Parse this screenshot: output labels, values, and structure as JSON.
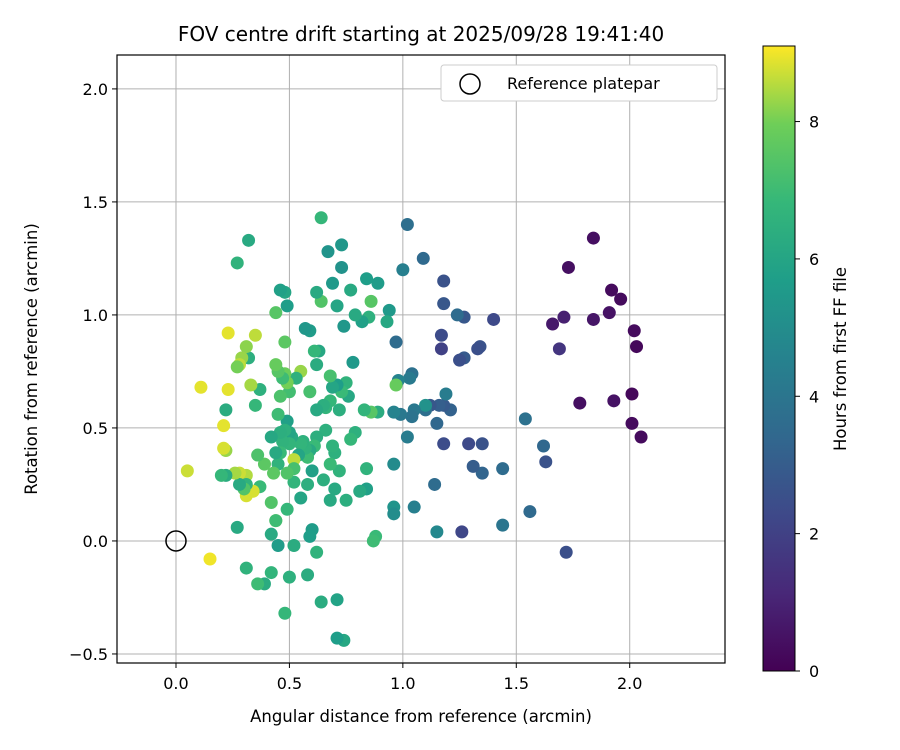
{
  "chart_data": {
    "type": "scatter",
    "title": "FOV centre drift starting at 2025/09/28 19:41:40",
    "xlabel": "Angular distance from reference (arcmin)",
    "ylabel": "Rotation from reference (arcmin)",
    "xlim": [
      -0.26,
      2.42
    ],
    "ylim": [
      -0.54,
      2.15
    ],
    "xticks": [
      0.0,
      0.5,
      1.0,
      1.5,
      2.0
    ],
    "xtick_labels": [
      "0.0",
      "0.5",
      "1.0",
      "1.5",
      "2.0"
    ],
    "yticks": [
      -0.5,
      0.0,
      0.5,
      1.0,
      1.5,
      2.0
    ],
    "ytick_labels": [
      "−0.5",
      "0.0",
      "0.5",
      "1.0",
      "1.5",
      "2.0"
    ],
    "grid": true,
    "legend": {
      "position": "top-right",
      "label": "Reference platepar"
    },
    "reference_point": {
      "x": 0.0,
      "y": 0.0
    },
    "colorbar": {
      "label": "Hours from first FF file",
      "min": 0,
      "max": 9.1,
      "ticks": [
        0,
        2,
        4,
        6,
        8
      ],
      "tick_labels": [
        "0",
        "2",
        "4",
        "6",
        "8"
      ],
      "colormap": "viridis"
    },
    "points": [
      {
        "x": 1.84,
        "y": 1.34,
        "h": 0.4
      },
      {
        "x": 1.73,
        "y": 1.21,
        "h": 0.4
      },
      {
        "x": 1.92,
        "y": 1.11,
        "h": 0.3
      },
      {
        "x": 1.96,
        "y": 1.07,
        "h": 0.3
      },
      {
        "x": 1.91,
        "y": 1.01,
        "h": 0.5
      },
      {
        "x": 1.84,
        "y": 0.98,
        "h": 0.6
      },
      {
        "x": 1.71,
        "y": 0.99,
        "h": 0.9
      },
      {
        "x": 1.66,
        "y": 0.96,
        "h": 0.7
      },
      {
        "x": 2.02,
        "y": 0.93,
        "h": 0.3
      },
      {
        "x": 2.03,
        "y": 0.86,
        "h": 0.2
      },
      {
        "x": 1.69,
        "y": 0.85,
        "h": 1.6
      },
      {
        "x": 2.01,
        "y": 0.65,
        "h": 0.2
      },
      {
        "x": 1.93,
        "y": 0.62,
        "h": 0.5
      },
      {
        "x": 1.78,
        "y": 0.61,
        "h": 0.4
      },
      {
        "x": 2.01,
        "y": 0.52,
        "h": 0.3
      },
      {
        "x": 2.05,
        "y": 0.46,
        "h": 0.3
      },
      {
        "x": 1.72,
        "y": -0.05,
        "h": 2.5
      },
      {
        "x": 1.63,
        "y": 0.35,
        "h": 2.6
      },
      {
        "x": 1.62,
        "y": 0.42,
        "h": 3.4
      },
      {
        "x": 1.54,
        "y": 0.54,
        "h": 3.8
      },
      {
        "x": 1.56,
        "y": 0.13,
        "h": 3.5
      },
      {
        "x": 1.44,
        "y": 0.07,
        "h": 4.0
      },
      {
        "x": 1.44,
        "y": 0.32,
        "h": 3.6
      },
      {
        "x": 1.4,
        "y": 0.98,
        "h": 2.3
      },
      {
        "x": 1.34,
        "y": 0.86,
        "h": 2.6
      },
      {
        "x": 1.33,
        "y": 0.85,
        "h": 2.5
      },
      {
        "x": 1.35,
        "y": 0.43,
        "h": 2.6
      },
      {
        "x": 1.35,
        "y": 0.3,
        "h": 3.3
      },
      {
        "x": 1.31,
        "y": 0.33,
        "h": 3.0
      },
      {
        "x": 1.29,
        "y": 0.43,
        "h": 2.3
      },
      {
        "x": 1.27,
        "y": 0.99,
        "h": 2.8
      },
      {
        "x": 1.27,
        "y": 0.81,
        "h": 2.9
      },
      {
        "x": 1.25,
        "y": 0.8,
        "h": 2.5
      },
      {
        "x": 1.24,
        "y": 1.0,
        "h": 3.6
      },
      {
        "x": 1.26,
        "y": 0.04,
        "h": 2.2
      },
      {
        "x": 1.21,
        "y": 0.58,
        "h": 3.2
      },
      {
        "x": 1.18,
        "y": 1.15,
        "h": 2.6
      },
      {
        "x": 1.18,
        "y": 1.05,
        "h": 2.8
      },
      {
        "x": 1.17,
        "y": 0.91,
        "h": 2.4
      },
      {
        "x": 1.17,
        "y": 0.85,
        "h": 2.0
      },
      {
        "x": 1.18,
        "y": 0.6,
        "h": 2.9
      },
      {
        "x": 1.18,
        "y": 0.43,
        "h": 2.4
      },
      {
        "x": 1.19,
        "y": 0.65,
        "h": 4.3
      },
      {
        "x": 1.16,
        "y": 0.6,
        "h": 3.1
      },
      {
        "x": 1.15,
        "y": 0.52,
        "h": 3.4
      },
      {
        "x": 1.14,
        "y": 0.25,
        "h": 3.6
      },
      {
        "x": 1.15,
        "y": 0.04,
        "h": 4.8
      },
      {
        "x": 1.12,
        "y": 0.6,
        "h": 2.8
      },
      {
        "x": 1.1,
        "y": 0.58,
        "h": 3.7
      },
      {
        "x": 1.1,
        "y": 0.6,
        "h": 5.2
      },
      {
        "x": 1.09,
        "y": 1.25,
        "h": 3.5
      },
      {
        "x": 1.05,
        "y": 0.58,
        "h": 4.1
      },
      {
        "x": 1.04,
        "y": 0.74,
        "h": 3.8
      },
      {
        "x": 1.03,
        "y": 0.72,
        "h": 4.2
      },
      {
        "x": 1.04,
        "y": 0.55,
        "h": 3.9
      },
      {
        "x": 1.05,
        "y": 0.15,
        "h": 4.4
      },
      {
        "x": 1.02,
        "y": 1.4,
        "h": 3.7
      },
      {
        "x": 1.02,
        "y": 0.46,
        "h": 4.3
      },
      {
        "x": 1.0,
        "y": 1.2,
        "h": 4.4
      },
      {
        "x": 0.99,
        "y": 0.56,
        "h": 4.1
      },
      {
        "x": 0.98,
        "y": 0.71,
        "h": 4.6
      },
      {
        "x": 0.97,
        "y": 0.88,
        "h": 3.6
      },
      {
        "x": 0.96,
        "y": 0.57,
        "h": 4.6
      },
      {
        "x": 0.96,
        "y": 0.34,
        "h": 4.9
      },
      {
        "x": 0.96,
        "y": 0.15,
        "h": 5.3
      },
      {
        "x": 0.96,
        "y": 0.12,
        "h": 5.0
      },
      {
        "x": 0.97,
        "y": 0.69,
        "h": 7.8
      },
      {
        "x": 0.94,
        "y": 1.02,
        "h": 5.5
      },
      {
        "x": 0.93,
        "y": 0.97,
        "h": 6.1
      },
      {
        "x": 0.89,
        "y": 1.14,
        "h": 5.6
      },
      {
        "x": 0.89,
        "y": 0.57,
        "h": 6.3
      },
      {
        "x": 0.88,
        "y": 0.02,
        "h": 6.9
      },
      {
        "x": 0.87,
        "y": 0.0,
        "h": 7.0
      },
      {
        "x": 0.86,
        "y": 1.06,
        "h": 7.5
      },
      {
        "x": 0.85,
        "y": 0.99,
        "h": 6.5
      },
      {
        "x": 0.86,
        "y": 0.57,
        "h": 7.5
      },
      {
        "x": 0.84,
        "y": 1.16,
        "h": 5.7
      },
      {
        "x": 0.84,
        "y": 0.23,
        "h": 5.8
      },
      {
        "x": 0.84,
        "y": 0.32,
        "h": 6.6
      },
      {
        "x": 0.83,
        "y": 0.58,
        "h": 6.7
      },
      {
        "x": 0.82,
        "y": 0.97,
        "h": 5.8
      },
      {
        "x": 0.81,
        "y": 0.22,
        "h": 6.2
      },
      {
        "x": 0.79,
        "y": 1.0,
        "h": 6.2
      },
      {
        "x": 0.79,
        "y": 0.48,
        "h": 6.5
      },
      {
        "x": 0.78,
        "y": 0.79,
        "h": 5.5
      },
      {
        "x": 0.77,
        "y": 1.11,
        "h": 6.2
      },
      {
        "x": 0.77,
        "y": 0.45,
        "h": 6.8
      },
      {
        "x": 0.75,
        "y": 0.18,
        "h": 6.4
      },
      {
        "x": 0.76,
        "y": 0.64,
        "h": 6.1
      },
      {
        "x": 0.75,
        "y": 0.7,
        "h": 6.6
      },
      {
        "x": 0.74,
        "y": 0.95,
        "h": 5.4
      },
      {
        "x": 0.74,
        "y": -0.44,
        "h": 6.1
      },
      {
        "x": 0.73,
        "y": 1.31,
        "h": 5.4
      },
      {
        "x": 0.73,
        "y": 1.21,
        "h": 5.2
      },
      {
        "x": 0.73,
        "y": 0.66,
        "h": 6.9
      },
      {
        "x": 0.72,
        "y": 0.58,
        "h": 6.4
      },
      {
        "x": 0.72,
        "y": 0.31,
        "h": 6.6
      },
      {
        "x": 0.71,
        "y": 1.04,
        "h": 6.0
      },
      {
        "x": 0.71,
        "y": 0.69,
        "h": 5.7
      },
      {
        "x": 0.71,
        "y": -0.26,
        "h": 5.9
      },
      {
        "x": 0.71,
        "y": -0.43,
        "h": 5.7
      },
      {
        "x": 0.7,
        "y": 0.39,
        "h": 6.5
      },
      {
        "x": 0.7,
        "y": 0.23,
        "h": 6.2
      },
      {
        "x": 0.69,
        "y": 1.14,
        "h": 5.5
      },
      {
        "x": 0.69,
        "y": 0.68,
        "h": 6.0
      },
      {
        "x": 0.69,
        "y": 0.42,
        "h": 6.6
      },
      {
        "x": 0.68,
        "y": 0.73,
        "h": 7.2
      },
      {
        "x": 0.68,
        "y": 0.62,
        "h": 6.8
      },
      {
        "x": 0.68,
        "y": 0.34,
        "h": 6.9
      },
      {
        "x": 0.68,
        "y": 0.18,
        "h": 6.2
      },
      {
        "x": 0.67,
        "y": 1.28,
        "h": 5.3
      },
      {
        "x": 0.66,
        "y": 0.59,
        "h": 6.7
      },
      {
        "x": 0.66,
        "y": 0.49,
        "h": 6.5
      },
      {
        "x": 0.65,
        "y": 0.6,
        "h": 6.4
      },
      {
        "x": 0.65,
        "y": 0.27,
        "h": 6.4
      },
      {
        "x": 0.64,
        "y": 1.43,
        "h": 6.8
      },
      {
        "x": 0.64,
        "y": 1.06,
        "h": 7.4
      },
      {
        "x": 0.64,
        "y": -0.27,
        "h": 6.3
      },
      {
        "x": 0.63,
        "y": 0.84,
        "h": 6.1
      },
      {
        "x": 0.62,
        "y": 1.1,
        "h": 6.2
      },
      {
        "x": 0.62,
        "y": 0.78,
        "h": 6.3
      },
      {
        "x": 0.62,
        "y": 0.58,
        "h": 6.2
      },
      {
        "x": 0.62,
        "y": 0.46,
        "h": 6.4
      },
      {
        "x": 0.62,
        "y": -0.05,
        "h": 6.6
      },
      {
        "x": 0.61,
        "y": 0.84,
        "h": 6.8
      },
      {
        "x": 0.61,
        "y": 0.42,
        "h": 6.9
      },
      {
        "x": 0.6,
        "y": 0.31,
        "h": 5.8
      },
      {
        "x": 0.6,
        "y": 0.05,
        "h": 5.6
      },
      {
        "x": 0.59,
        "y": 0.93,
        "h": 5.6
      },
      {
        "x": 0.59,
        "y": 0.66,
        "h": 7.2
      },
      {
        "x": 0.59,
        "y": 0.4,
        "h": 6.2
      },
      {
        "x": 0.59,
        "y": 0.02,
        "h": 5.7
      },
      {
        "x": 0.58,
        "y": 0.37,
        "h": 7.0
      },
      {
        "x": 0.58,
        "y": 0.25,
        "h": 6.4
      },
      {
        "x": 0.58,
        "y": -0.15,
        "h": 6.3
      },
      {
        "x": 0.57,
        "y": 0.94,
        "h": 5.4
      },
      {
        "x": 0.57,
        "y": 0.41,
        "h": 6.6
      },
      {
        "x": 0.56,
        "y": 0.44,
        "h": 6.5
      },
      {
        "x": 0.55,
        "y": 0.43,
        "h": 6.7
      },
      {
        "x": 0.55,
        "y": 0.75,
        "h": 8.3
      },
      {
        "x": 0.55,
        "y": 0.19,
        "h": 6.0
      },
      {
        "x": 0.54,
        "y": 0.38,
        "h": 6.0
      },
      {
        "x": 0.53,
        "y": 0.72,
        "h": 6.5
      },
      {
        "x": 0.52,
        "y": 0.36,
        "h": 8.6
      },
      {
        "x": 0.52,
        "y": 0.32,
        "h": 7.2
      },
      {
        "x": 0.52,
        "y": 0.26,
        "h": 6.7
      },
      {
        "x": 0.52,
        "y": -0.02,
        "h": 6.3
      },
      {
        "x": 0.51,
        "y": 0.46,
        "h": 6.2
      },
      {
        "x": 0.5,
        "y": 0.66,
        "h": 7.1
      },
      {
        "x": 0.5,
        "y": 0.48,
        "h": 6.0
      },
      {
        "x": 0.5,
        "y": 0.43,
        "h": 6.7
      },
      {
        "x": 0.5,
        "y": -0.16,
        "h": 6.5
      },
      {
        "x": 0.49,
        "y": 1.04,
        "h": 5.7
      },
      {
        "x": 0.49,
        "y": 0.7,
        "h": 8.0
      },
      {
        "x": 0.49,
        "y": 0.53,
        "h": 5.8
      },
      {
        "x": 0.49,
        "y": 0.3,
        "h": 7.4
      },
      {
        "x": 0.49,
        "y": 0.14,
        "h": 6.8
      },
      {
        "x": 0.48,
        "y": 1.1,
        "h": 6.0
      },
      {
        "x": 0.48,
        "y": 0.88,
        "h": 7.6
      },
      {
        "x": 0.48,
        "y": 0.74,
        "h": 7.9
      },
      {
        "x": 0.48,
        "y": 0.49,
        "h": 6.5
      },
      {
        "x": 0.48,
        "y": -0.32,
        "h": 6.8
      },
      {
        "x": 0.47,
        "y": 0.72,
        "h": 7.0
      },
      {
        "x": 0.47,
        "y": 0.44,
        "h": 6.6
      },
      {
        "x": 0.46,
        "y": 1.11,
        "h": 5.8
      },
      {
        "x": 0.46,
        "y": 0.64,
        "h": 7.3
      },
      {
        "x": 0.46,
        "y": 0.48,
        "h": 6.4
      },
      {
        "x": 0.46,
        "y": 0.39,
        "h": 6.9
      },
      {
        "x": 0.45,
        "y": 0.75,
        "h": 7.5
      },
      {
        "x": 0.45,
        "y": 0.56,
        "h": 7.0
      },
      {
        "x": 0.45,
        "y": 0.34,
        "h": 6.6
      },
      {
        "x": 0.44,
        "y": 1.01,
        "h": 7.5
      },
      {
        "x": 0.44,
        "y": 0.78,
        "h": 7.8
      },
      {
        "x": 0.44,
        "y": 0.39,
        "h": 6.2
      },
      {
        "x": 0.44,
        "y": 0.09,
        "h": 8.3
      },
      {
        "x": 0.44,
        "y": 0.09,
        "h": 7.0
      },
      {
        "x": 0.45,
        "y": -0.02,
        "h": 5.6
      },
      {
        "x": 0.43,
        "y": 0.3,
        "h": 7.6
      },
      {
        "x": 0.42,
        "y": 0.46,
        "h": 6.1
      },
      {
        "x": 0.42,
        "y": 0.17,
        "h": 7.4
      },
      {
        "x": 0.42,
        "y": 0.03,
        "h": 6.2
      },
      {
        "x": 0.42,
        "y": -0.14,
        "h": 6.7
      },
      {
        "x": 0.39,
        "y": 0.34,
        "h": 7.6
      },
      {
        "x": 0.39,
        "y": -0.19,
        "h": 6.3
      },
      {
        "x": 0.37,
        "y": 0.67,
        "h": 6.5
      },
      {
        "x": 0.37,
        "y": 0.24,
        "h": 6.9
      },
      {
        "x": 0.36,
        "y": 0.38,
        "h": 7.3
      },
      {
        "x": 0.36,
        "y": -0.19,
        "h": 7.0
      },
      {
        "x": 0.35,
        "y": 0.6,
        "h": 6.8
      },
      {
        "x": 0.35,
        "y": 0.91,
        "h": 8.6
      },
      {
        "x": 0.34,
        "y": 0.22,
        "h": 8.8
      },
      {
        "x": 0.33,
        "y": 0.69,
        "h": 8.4
      },
      {
        "x": 0.32,
        "y": 1.33,
        "h": 6.2
      },
      {
        "x": 0.32,
        "y": 0.81,
        "h": 6.4
      },
      {
        "x": 0.31,
        "y": 0.86,
        "h": 8.2
      },
      {
        "x": 0.31,
        "y": 0.29,
        "h": 8.5
      },
      {
        "x": 0.31,
        "y": 0.2,
        "h": 8.8
      },
      {
        "x": 0.31,
        "y": 0.25,
        "h": 6.6
      },
      {
        "x": 0.31,
        "y": -0.12,
        "h": 6.6
      },
      {
        "x": 0.3,
        "y": 0.23,
        "h": 7.4
      },
      {
        "x": 0.29,
        "y": 0.81,
        "h": 8.3
      },
      {
        "x": 0.28,
        "y": 0.78,
        "h": 8.6
      },
      {
        "x": 0.28,
        "y": 0.3,
        "h": 8.7
      },
      {
        "x": 0.28,
        "y": 0.25,
        "h": 6.2
      },
      {
        "x": 0.27,
        "y": 1.23,
        "h": 6.6
      },
      {
        "x": 0.27,
        "y": 0.77,
        "h": 8.0
      },
      {
        "x": 0.27,
        "y": 0.06,
        "h": 6.2
      },
      {
        "x": 0.26,
        "y": 0.3,
        "h": 8.4
      },
      {
        "x": 0.23,
        "y": 0.92,
        "h": 8.9
      },
      {
        "x": 0.23,
        "y": 0.67,
        "h": 8.9
      },
      {
        "x": 0.22,
        "y": 0.58,
        "h": 6.3
      },
      {
        "x": 0.22,
        "y": 0.4,
        "h": 8.3
      },
      {
        "x": 0.22,
        "y": 0.29,
        "h": 6.3
      },
      {
        "x": 0.21,
        "y": 0.41,
        "h": 8.8
      },
      {
        "x": 0.21,
        "y": 0.51,
        "h": 8.9
      },
      {
        "x": 0.2,
        "y": 0.29,
        "h": 6.8
      },
      {
        "x": 0.11,
        "y": 0.68,
        "h": 8.9
      },
      {
        "x": 0.15,
        "y": -0.08,
        "h": 9.0
      },
      {
        "x": 0.05,
        "y": 0.31,
        "h": 8.7
      }
    ]
  }
}
